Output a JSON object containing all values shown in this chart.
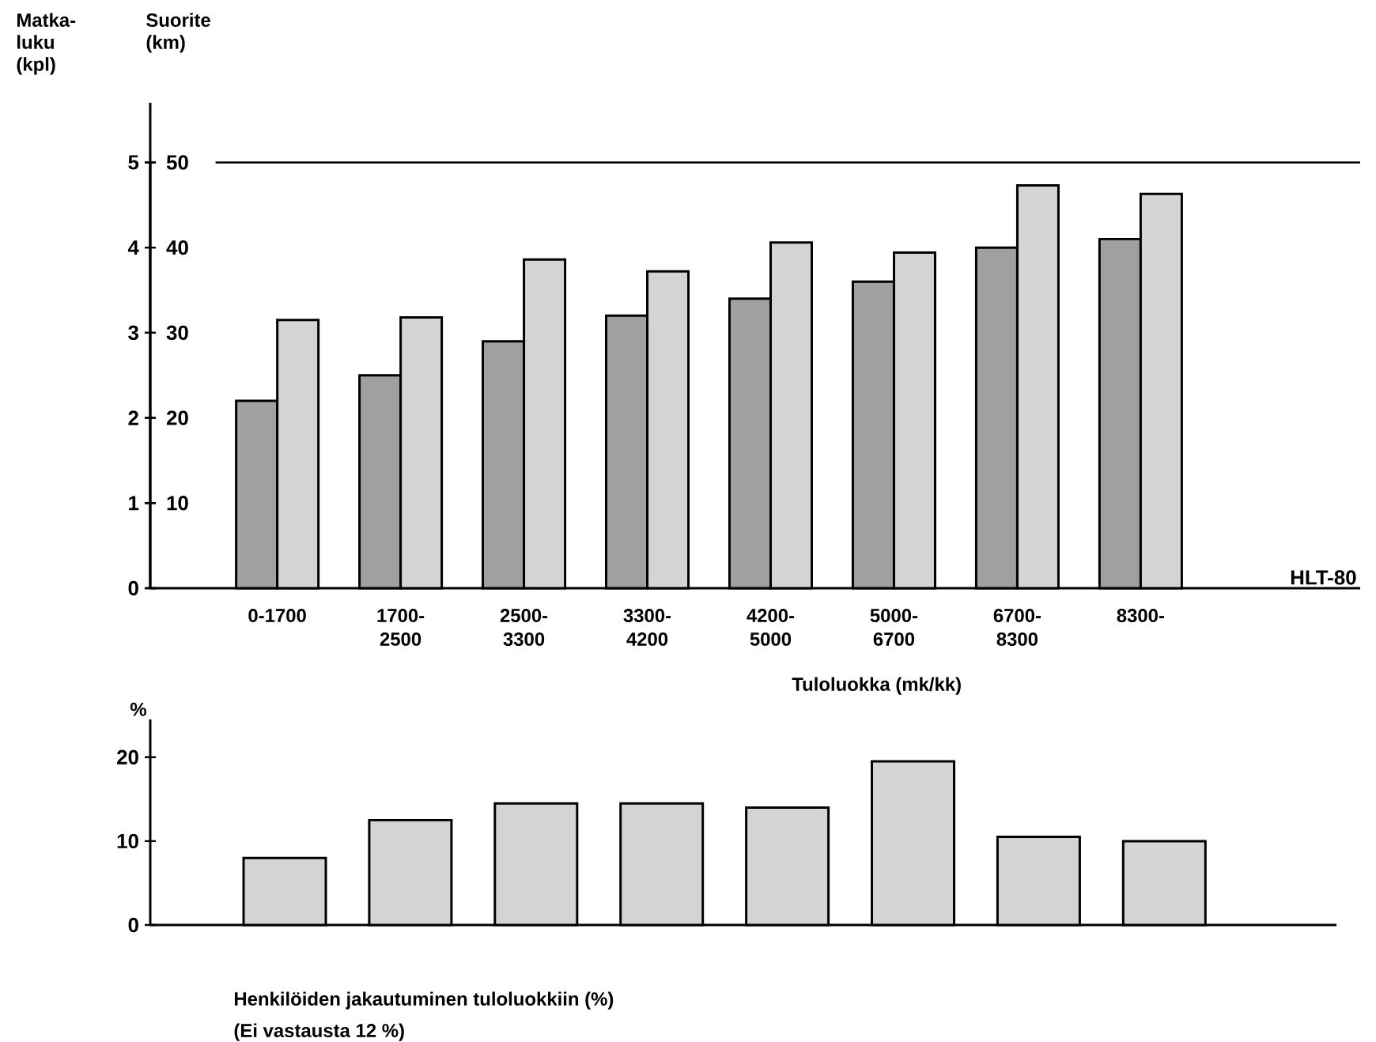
{
  "chart_data": [
    {
      "type": "bar",
      "ylabel": "Matka-luku (kpl)",
      "y2label": "Suorite (km)",
      "xlabel": "Tuloluokka (mk/kk)",
      "categories": [
        "0-1700",
        "1700-2500",
        "2500-3300",
        "3300-4200",
        "4200-5000",
        "5000-6700",
        "6700-8300",
        "8300-"
      ],
      "series": [
        {
          "color": "#a0a0a0",
          "values": [
            2.2,
            2.5,
            2.9,
            3.2,
            3.4,
            3.6,
            4.0,
            4.1
          ]
        },
        {
          "color": "#d4d4d4",
          "axis": "y2",
          "values": [
            31.5,
            31.8,
            38.6,
            37.2,
            40.6,
            39.4,
            47.3,
            46.3
          ]
        }
      ],
      "ylim": [
        0,
        5.7
      ],
      "yticks": [
        0,
        1,
        2,
        3,
        4,
        5
      ],
      "y2lim": [
        0,
        50
      ],
      "y2ticks": [
        {
          "value": 0,
          "label": null
        },
        10,
        20,
        30,
        40,
        50
      ],
      "ref_lines": [
        {
          "axis": "y",
          "value": 5
        }
      ],
      "annotations": [
        "HLT-80"
      ]
    },
    {
      "type": "bar",
      "ylabel": "%",
      "xlabel": "Henkilöiden jakautuminen tuloluokkiin (%)",
      "categories": [
        null,
        null,
        null,
        null,
        null,
        null,
        null,
        null
      ],
      "tick_labels": "y",
      "color": "#d4d4d4",
      "values": [
        8,
        12.5,
        14.5,
        14.5,
        14,
        19.5,
        10.5,
        10
      ],
      "ylim": [
        0,
        24.5
      ],
      "yticks": [
        0,
        10,
        20
      ],
      "annotations": [
        "(Ei vastausta 12 %)"
      ]
    }
  ]
}
